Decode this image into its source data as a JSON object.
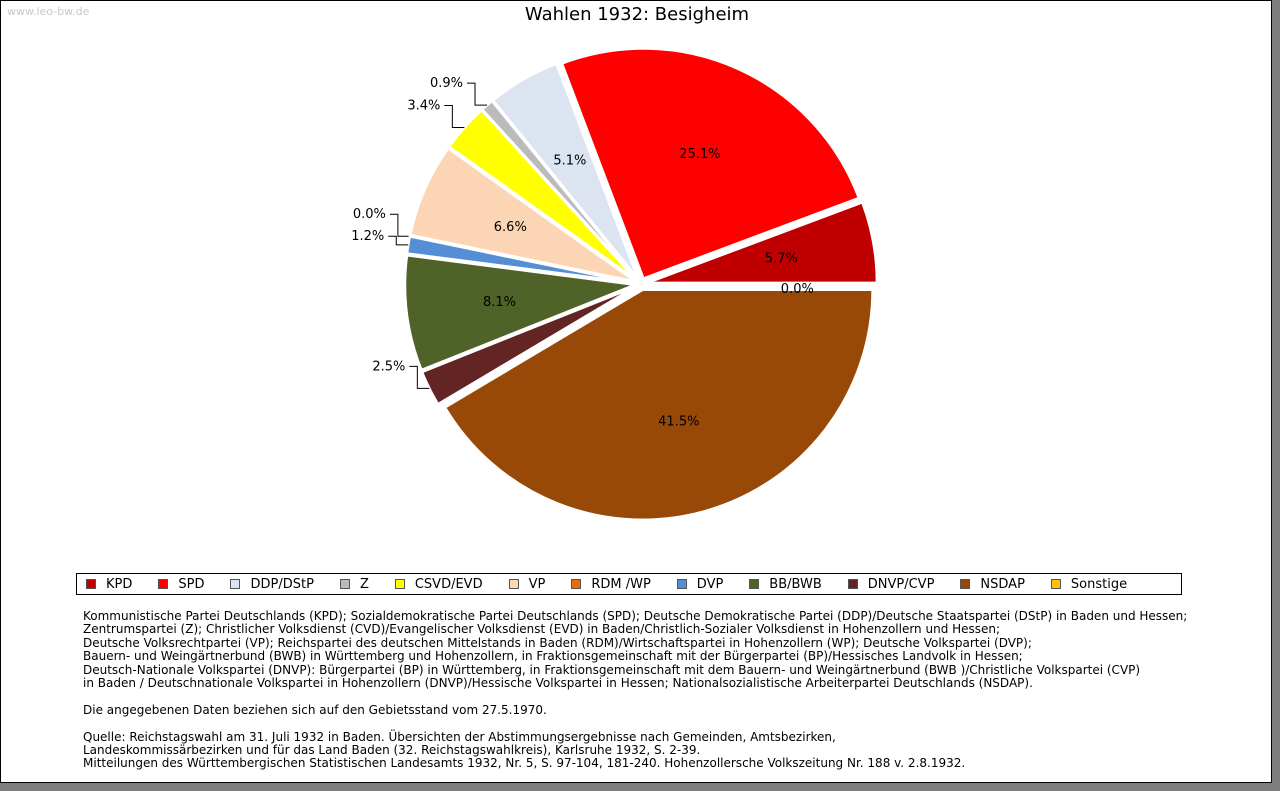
{
  "watermark": "www.leo-bw.de",
  "chart_data": {
    "type": "pie",
    "title": "Wahlen 1932: Besigheim",
    "slices": [
      {
        "label": "KPD",
        "value": 5.7,
        "display": "5.7%",
        "color": "#c00000"
      },
      {
        "label": "SPD",
        "value": 25.1,
        "display": "25.1%",
        "color": "#ff0000"
      },
      {
        "label": "DDP/DStP",
        "value": 5.1,
        "display": "5.1%",
        "color": "#dce4f2"
      },
      {
        "label": "Z",
        "value": 0.9,
        "display": "0.9%",
        "color": "#bbbbbb"
      },
      {
        "label": "CSVD/EVD",
        "value": 3.4,
        "display": "3.4%",
        "color": "#ffff00"
      },
      {
        "label": "VP",
        "value": 6.6,
        "display": "6.6%",
        "color": "#fcd5b4"
      },
      {
        "label": "RDM /WP",
        "value": 0.0,
        "display": "0.0%",
        "color": "#e46c0a"
      },
      {
        "label": "DVP",
        "value": 1.2,
        "display": "1.2%",
        "color": "#558ed5"
      },
      {
        "label": "BB/BWB",
        "value": 8.1,
        "display": "8.1%",
        "color": "#4f6228"
      },
      {
        "label": "DNVP/CVP",
        "value": 2.5,
        "display": "2.5%",
        "color": "#632523"
      },
      {
        "label": "NSDAP",
        "value": 41.5,
        "display": "41.5%",
        "color": "#984807"
      },
      {
        "label": "Sonstige",
        "value": 0.0,
        "display": "0.0%",
        "color": "#ffc000"
      }
    ]
  },
  "notes": {
    "parties": [
      "Kommunistische Partei Deutschlands (KPD); Sozialdemokratische Partei Deutschlands (SPD); Deutsche Demokratische Partei (DDP)/Deutsche Staatspartei (DStP) in Baden und Hessen;",
      "Zentrumspartei (Z); Christlicher Volksdienst (CVD)/Evangelischer Volksdienst (EVD) in Baden/Christlich-Sozialer Volksdienst in Hohenzollern und Hessen;",
      "Deutsche Volksrechtpartei (VP); Reichspartei des deutschen Mittelstands in Baden (RDM)/Wirtschaftspartei in Hohenzollern (WP); Deutsche Volkspartei (DVP);",
      "Bauern- und Weingärtnerbund (BWB) in Württemberg und Hohenzollern, in Fraktionsgemeinschaft mit der Bürgerpartei (BP)/Hessisches Landvolk in Hessen;",
      "Deutsch-Nationale Volkspartei (DNVP): Bürgerpartei (BP) in Württemberg, in Fraktionsgemeinschaft mit dem Bauern- und Weingärtnerbund (BWB )/Christliche Volkspartei (CVP)",
      "in Baden / Deutschnationale Volkspartei in Hohenzollern (DNVP)/Hessische Volkspartei in Hessen; Nationalsozialistische Arbeiterpartei Deutschlands (NSDAP)."
    ],
    "gebietsstand": "Die angegebenen Daten beziehen sich auf den Gebietsstand vom 27.5.1970.",
    "quelle": [
      "Quelle: Reichstagswahl am 31. Juli 1932 in Baden. Übersichten der Abstimmungsergebnisse nach Gemeinden, Amtsbezirken,",
      "Landeskommissärbezirken und für das Land Baden (32. Reichstagswahlkreis), Karlsruhe 1932, S. 2-39.",
      "Mitteilungen des Württembergischen Statistischen Landesamts 1932, Nr. 5, S. 97-104, 181-240. Hohenzollersche Volkszeitung Nr. 188 v. 2.8.1932."
    ]
  }
}
